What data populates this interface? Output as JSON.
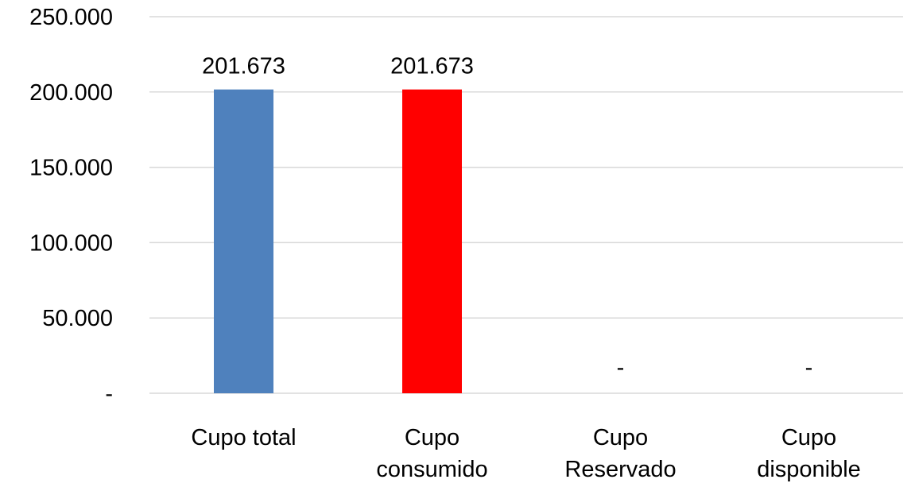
{
  "chart_data": {
    "type": "bar",
    "categories": [
      [
        "Cupo total"
      ],
      [
        "Cupo",
        "consumido"
      ],
      [
        "Cupo",
        "Reservado"
      ],
      [
        "Cupo",
        "disponible"
      ]
    ],
    "values": [
      201673,
      201673,
      0,
      0
    ],
    "data_labels": [
      "201.673",
      "201.673",
      "-",
      "-"
    ],
    "bar_colors": [
      "#4f81bd",
      "#ff0000",
      "#4f81bd",
      "#4f81bd"
    ],
    "ylim": [
      0,
      250000
    ],
    "y_ticks": [
      0,
      50000,
      100000,
      150000,
      200000,
      250000
    ],
    "y_tick_labels": [
      "-",
      "50.000",
      "100.000",
      "150.000",
      "200.000",
      "250.000"
    ],
    "grid": true,
    "grid_color": "#d9d9d9",
    "legend": false
  }
}
